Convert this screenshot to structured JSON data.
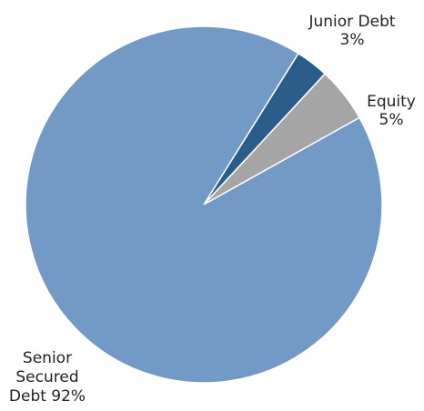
{
  "chart_data": {
    "type": "pie",
    "categories": [
      "Junior Debt",
      "Equity",
      "Senior Secured Debt"
    ],
    "values": [
      3,
      5,
      92
    ],
    "colors": [
      "#2c5d8a",
      "#a5a5a5",
      "#7399c6"
    ],
    "labels": [
      [
        "Junior Debt",
        "3%"
      ],
      [
        "Equity",
        "5%"
      ],
      [
        "Senior",
        "Secured",
        "Debt 92%"
      ]
    ]
  }
}
